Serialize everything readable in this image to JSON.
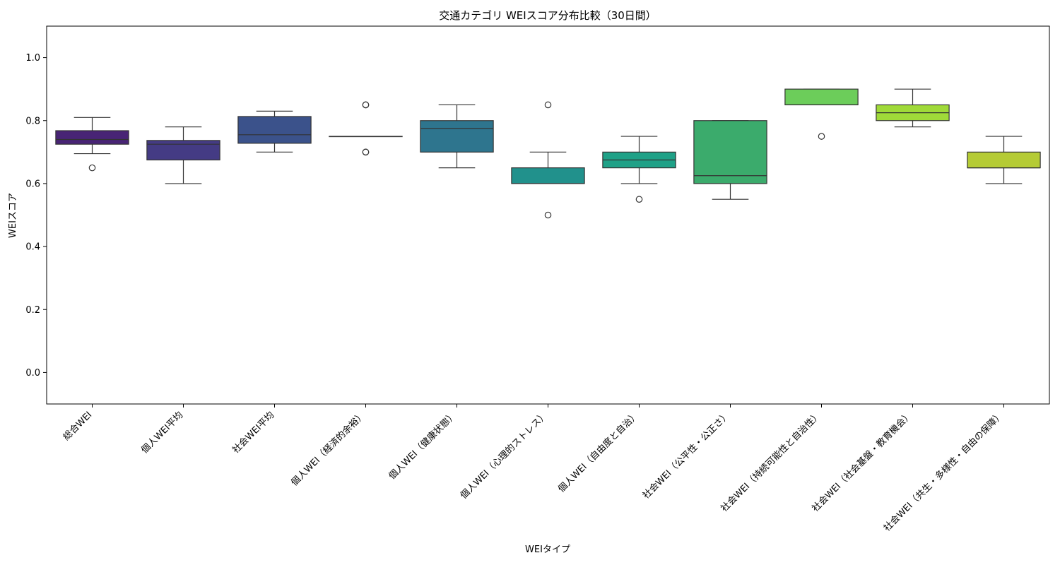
{
  "chart_data": {
    "type": "box",
    "title": "交通カテゴリ WEIスコア分布比較（30日間）",
    "xlabel": "WEIタイプ",
    "ylabel": "WEIスコア",
    "ylim": [
      -0.1,
      1.1
    ],
    "yticks": [
      "0.0",
      "0.2",
      "0.4",
      "0.6",
      "0.8",
      "1.0"
    ],
    "grid": false,
    "categories": [
      "総合WEI",
      "個人WEI平均",
      "社会WEI平均",
      "個人WEI（経済的余裕）",
      "個人WEI（健康状態）",
      "個人WEI（心理的ストレス）",
      "個人WEI（自由度と自治）",
      "社会WEI（公平性・公正さ）",
      "社会WEI（持続可能性と自治性）",
      "社会WEI（社会基盤・教育機会）",
      "社会WEI（共生・多様性・自由の保障）"
    ],
    "boxes": [
      {
        "whisker_low": 0.695,
        "q1": 0.725,
        "median": 0.74,
        "q3": 0.768,
        "whisker_high": 0.81,
        "outliers": [
          0.65
        ],
        "color": "#482475"
      },
      {
        "whisker_low": 0.6,
        "q1": 0.675,
        "median": 0.725,
        "q3": 0.737,
        "whisker_high": 0.78,
        "outliers": [],
        "color": "#443b84"
      },
      {
        "whisker_low": 0.7,
        "q1": 0.728,
        "median": 0.755,
        "q3": 0.813,
        "whisker_high": 0.83,
        "outliers": [],
        "color": "#3b528b"
      },
      {
        "whisker_low": 0.75,
        "q1": 0.75,
        "median": 0.75,
        "q3": 0.75,
        "whisker_high": 0.75,
        "outliers": [
          0.85,
          0.85,
          0.7,
          0.7
        ],
        "color": "#31688e"
      },
      {
        "whisker_low": 0.65,
        "q1": 0.7,
        "median": 0.775,
        "q3": 0.8,
        "whisker_high": 0.85,
        "outliers": [],
        "color": "#2e758e"
      },
      {
        "whisker_low": 0.6,
        "q1": 0.6,
        "median": 0.6,
        "q3": 0.65,
        "whisker_high": 0.7,
        "outliers": [
          0.85,
          0.5
        ],
        "color": "#21918c"
      },
      {
        "whisker_low": 0.6,
        "q1": 0.65,
        "median": 0.675,
        "q3": 0.7,
        "whisker_high": 0.75,
        "outliers": [
          0.55
        ],
        "color": "#1fa187"
      },
      {
        "whisker_low": 0.55,
        "q1": 0.6,
        "median": 0.625,
        "q3": 0.8,
        "whisker_high": 0.8,
        "outliers": [],
        "color": "#3bab6c"
      },
      {
        "whisker_low": 0.85,
        "q1": 0.85,
        "median": 0.85,
        "q3": 0.9,
        "whisker_high": 0.9,
        "outliers": [
          0.75
        ],
        "color": "#6ccd5a"
      },
      {
        "whisker_low": 0.78,
        "q1": 0.8,
        "median": 0.825,
        "q3": 0.85,
        "whisker_high": 0.9,
        "outliers": [],
        "color": "#a0da39"
      },
      {
        "whisker_low": 0.6,
        "q1": 0.65,
        "median": 0.65,
        "q3": 0.7,
        "whisker_high": 0.75,
        "outliers": [],
        "color": "#b5cb35"
      }
    ]
  }
}
